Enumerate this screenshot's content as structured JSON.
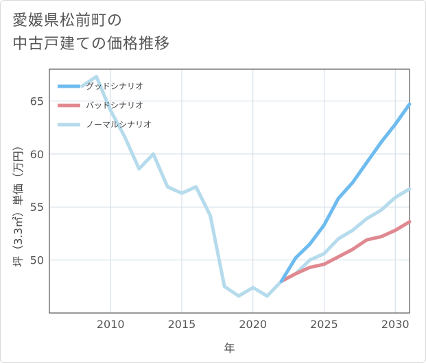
{
  "title": {
    "line1": "愛媛県松前町の",
    "line2": "中古戸建ての価格推移"
  },
  "chart_data": {
    "type": "line",
    "xlabel": "年",
    "ylabel": "坪（3.3㎡）単価（万円）",
    "xlim": [
      2005.7,
      2031
    ],
    "ylim": [
      45,
      68
    ],
    "x_ticks": [
      2010,
      2015,
      2020,
      2025,
      2030
    ],
    "y_ticks": [
      50,
      55,
      60,
      65
    ],
    "grid": true,
    "legend_position": "top-left",
    "series": [
      {
        "name": "グッドシナリオ",
        "color": "#6dbbef",
        "x": [
          2022,
          2023,
          2024,
          2025,
          2026,
          2027,
          2028,
          2029,
          2030,
          2031
        ],
        "y": [
          48.0,
          50.2,
          51.5,
          53.3,
          55.8,
          57.3,
          59.2,
          61.1,
          62.8,
          64.7
        ]
      },
      {
        "name": "バッドシナリオ",
        "color": "#e08890",
        "x": [
          2022,
          2023,
          2024,
          2025,
          2026,
          2027,
          2028,
          2029,
          2030,
          2031
        ],
        "y": [
          48.0,
          48.7,
          49.3,
          49.6,
          50.3,
          51.0,
          51.9,
          52.2,
          52.8,
          53.6
        ]
      },
      {
        "name": "ノーマルシナリオ",
        "color": "#b5dbec",
        "x": [
          2008,
          2009,
          2010,
          2011,
          2012,
          2013,
          2014,
          2015,
          2016,
          2017,
          2018,
          2019,
          2020,
          2021,
          2022,
          2023,
          2024,
          2025,
          2026,
          2027,
          2028,
          2029,
          2030,
          2031
        ],
        "y": [
          66.4,
          67.3,
          64.1,
          61.6,
          58.6,
          60.0,
          56.9,
          56.3,
          56.9,
          54.2,
          47.5,
          46.6,
          47.4,
          46.6,
          48.0,
          48.7,
          50.0,
          50.6,
          52.0,
          52.8,
          53.9,
          54.7,
          55.9,
          56.7
        ]
      }
    ]
  }
}
